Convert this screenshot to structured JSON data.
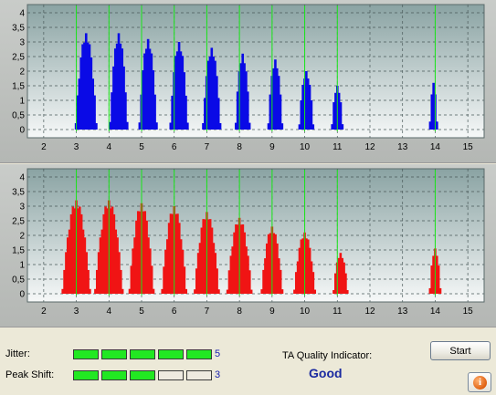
{
  "chart_data": [
    {
      "type": "bar",
      "panel": "top",
      "color": "#0a0ae6",
      "ylim": [
        0,
        4
      ],
      "xlim": [
        1.5,
        15.5
      ],
      "y_ticks": [
        "0",
        "0,5",
        "1",
        "1,5",
        "2",
        "2,5",
        "3",
        "3,5",
        "4"
      ],
      "x_ticks": [
        "2",
        "3",
        "4",
        "5",
        "6",
        "7",
        "8",
        "9",
        "10",
        "11",
        "12",
        "13",
        "14",
        "15"
      ],
      "grid": "dashed",
      "marker_lines": [
        3,
        4,
        5,
        6,
        7,
        8,
        9,
        10,
        11,
        14
      ],
      "groups": [
        {
          "center": 3.3,
          "peak": 3.3,
          "halfwidth": 0.3
        },
        {
          "center": 4.3,
          "peak": 3.3,
          "halfwidth": 0.28
        },
        {
          "center": 5.2,
          "peak": 3.1,
          "halfwidth": 0.27
        },
        {
          "center": 6.15,
          "peak": 3.0,
          "halfwidth": 0.26
        },
        {
          "center": 7.15,
          "peak": 2.8,
          "halfwidth": 0.26
        },
        {
          "center": 8.1,
          "peak": 2.6,
          "halfwidth": 0.22
        },
        {
          "center": 9.1,
          "peak": 2.4,
          "halfwidth": 0.22
        },
        {
          "center": 10.05,
          "peak": 2.0,
          "halfwidth": 0.22
        },
        {
          "center": 11.0,
          "peak": 1.5,
          "halfwidth": 0.15
        },
        {
          "center": 13.95,
          "peak": 1.6,
          "halfwidth": 0.1
        }
      ]
    },
    {
      "type": "bar",
      "panel": "bottom",
      "color": "#f01414",
      "ylim": [
        0,
        4
      ],
      "xlim": [
        1.5,
        15.5
      ],
      "y_ticks": [
        "0",
        "0,5",
        "1",
        "1,5",
        "2",
        "2,5",
        "3",
        "3,5",
        "4"
      ],
      "x_ticks": [
        "2",
        "3",
        "4",
        "5",
        "6",
        "7",
        "8",
        "9",
        "10",
        "11",
        "12",
        "13",
        "14",
        "15"
      ],
      "grid": "dashed",
      "marker_lines": [
        3,
        4,
        5,
        6,
        7,
        8,
        9,
        10,
        11,
        14
      ],
      "groups": [
        {
          "center": 3.0,
          "peak": 3.2,
          "halfwidth": 0.4
        },
        {
          "center": 4.0,
          "peak": 3.2,
          "halfwidth": 0.4
        },
        {
          "center": 5.0,
          "peak": 3.1,
          "halfwidth": 0.38
        },
        {
          "center": 6.0,
          "peak": 3.0,
          "halfwidth": 0.38
        },
        {
          "center": 7.0,
          "peak": 2.8,
          "halfwidth": 0.36
        },
        {
          "center": 8.0,
          "peak": 2.6,
          "halfwidth": 0.34
        },
        {
          "center": 9.0,
          "peak": 2.3,
          "halfwidth": 0.32
        },
        {
          "center": 10.0,
          "peak": 2.1,
          "halfwidth": 0.3
        },
        {
          "center": 11.1,
          "peak": 1.4,
          "halfwidth": 0.2
        },
        {
          "center": 14.0,
          "peak": 1.55,
          "halfwidth": 0.14
        }
      ]
    }
  ],
  "colors": {
    "plot_bg_top": "#8aa3a3",
    "plot_bg_bottom": "#f6f8f8",
    "marker_line": "#19e619",
    "grid": "#4a5a5a",
    "meter_on": "#22e822",
    "value_text": "#1a23b0"
  },
  "status": {
    "jitter": {
      "label": "Jitter:",
      "value": "5",
      "level": 5,
      "segments": 5
    },
    "peak_shift": {
      "label": "Peak Shift:",
      "value": "3",
      "level": 3,
      "segments": 5
    },
    "ta_label": "TA Quality Indicator:",
    "ta_value": "Good"
  },
  "buttons": {
    "start_label": "Start",
    "info_icon": "info-icon",
    "info_glyph": "i"
  }
}
